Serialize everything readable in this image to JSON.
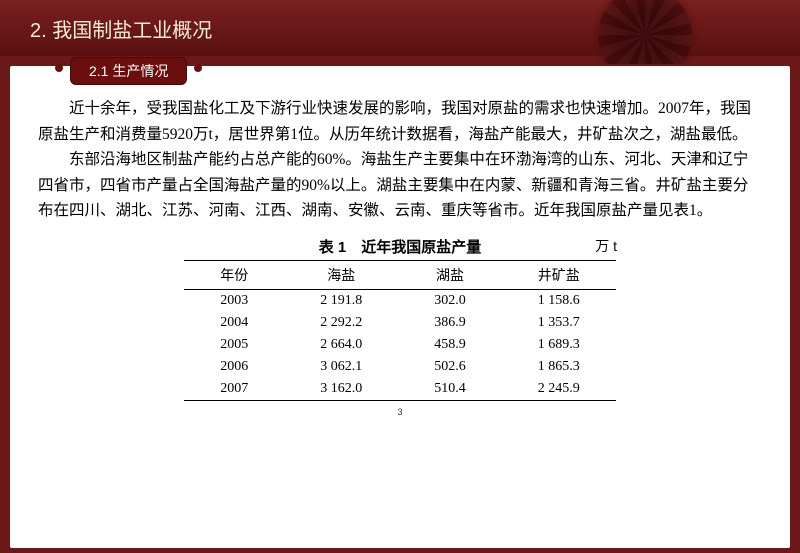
{
  "header": {
    "title": "2. 我国制盐工业概况"
  },
  "tab": {
    "label": "2.1 生产情况"
  },
  "paragraphs": {
    "p1": "近十余年，受我国盐化工及下游行业快速发展的影响，我国对原盐的需求也快速增加。2007年，我国原盐生产和消费量5920万t，居世界第1位。从历年统计数据看，海盐产能最大，井矿盐次之，湖盐最低。",
    "p2": "东部沿海地区制盐产能约占总产能的60%。海盐生产主要集中在环渤海湾的山东、河北、天津和辽宁四省市，四省市产量占全国海盐产量的90%以上。湖盐主要集中在内蒙、新疆和青海三省。井矿盐主要分布在四川、湖北、江苏、河南、江西、湖南、安徽、云南、重庆等省市。近年我国原盐产量见表1。"
  },
  "table": {
    "title": "表 1　近年我国原盐产量",
    "unit": "万 t",
    "columns": {
      "c0": "年份",
      "c1": "海盐",
      "c2": "湖盐",
      "c3": "井矿盐"
    },
    "rows": {
      "r0": {
        "c0": "2003",
        "c1": "2 191.8",
        "c2": "302.0",
        "c3": "1 158.6"
      },
      "r1": {
        "c0": "2004",
        "c1": "2 292.2",
        "c2": "386.9",
        "c3": "1 353.7"
      },
      "r2": {
        "c0": "2005",
        "c1": "2 664.0",
        "c2": "458.9",
        "c3": "1 689.3"
      },
      "r3": {
        "c0": "2006",
        "c1": "3 062.1",
        "c2": "502.6",
        "c3": "1 865.3"
      },
      "r4": {
        "c0": "2007",
        "c1": "3 162.0",
        "c2": "510.4",
        "c3": "2 245.9"
      }
    }
  },
  "pagenum": "3",
  "styles": {
    "bg": "#6b1818",
    "headerGrad1": "#7a2020",
    "headerGrad2": "#5a1010",
    "tabBg": "#6b0e0e",
    "contentBg": "#ffffff",
    "text": "#000000"
  }
}
